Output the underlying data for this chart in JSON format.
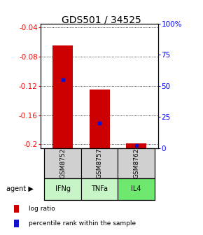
{
  "title": "GDS501 / 34525",
  "samples": [
    "GSM8752",
    "GSM8757",
    "GSM8762"
  ],
  "agents": [
    "IFNg",
    "TNFa",
    "IL4"
  ],
  "log_ratios": [
    -0.065,
    -0.125,
    -0.199
  ],
  "percentile_ranks": [
    55,
    20,
    2
  ],
  "bar_color": "#cc0000",
  "percentile_color": "#1111cc",
  "ylim_left": [
    -0.205,
    -0.035
  ],
  "ylim_right": [
    0,
    100
  ],
  "yticks_left": [
    -0.2,
    -0.16,
    -0.12,
    -0.08,
    -0.04
  ],
  "yticks_right": [
    0,
    25,
    50,
    75,
    100
  ],
  "ytick_labels_left": [
    "-0.2",
    "-0.16",
    "-0.12",
    "-0.08",
    "-0.04"
  ],
  "ytick_labels_right": [
    "0",
    "25",
    "50",
    "75",
    "100%"
  ],
  "bar_width": 0.55,
  "agent_colors": [
    "#c8f5c8",
    "#c8f5c8",
    "#6ee86e"
  ],
  "sample_box_color": "#d0d0d0",
  "title_fontsize": 10,
  "tick_fontsize": 7.5,
  "legend_fontsize": 6.5
}
